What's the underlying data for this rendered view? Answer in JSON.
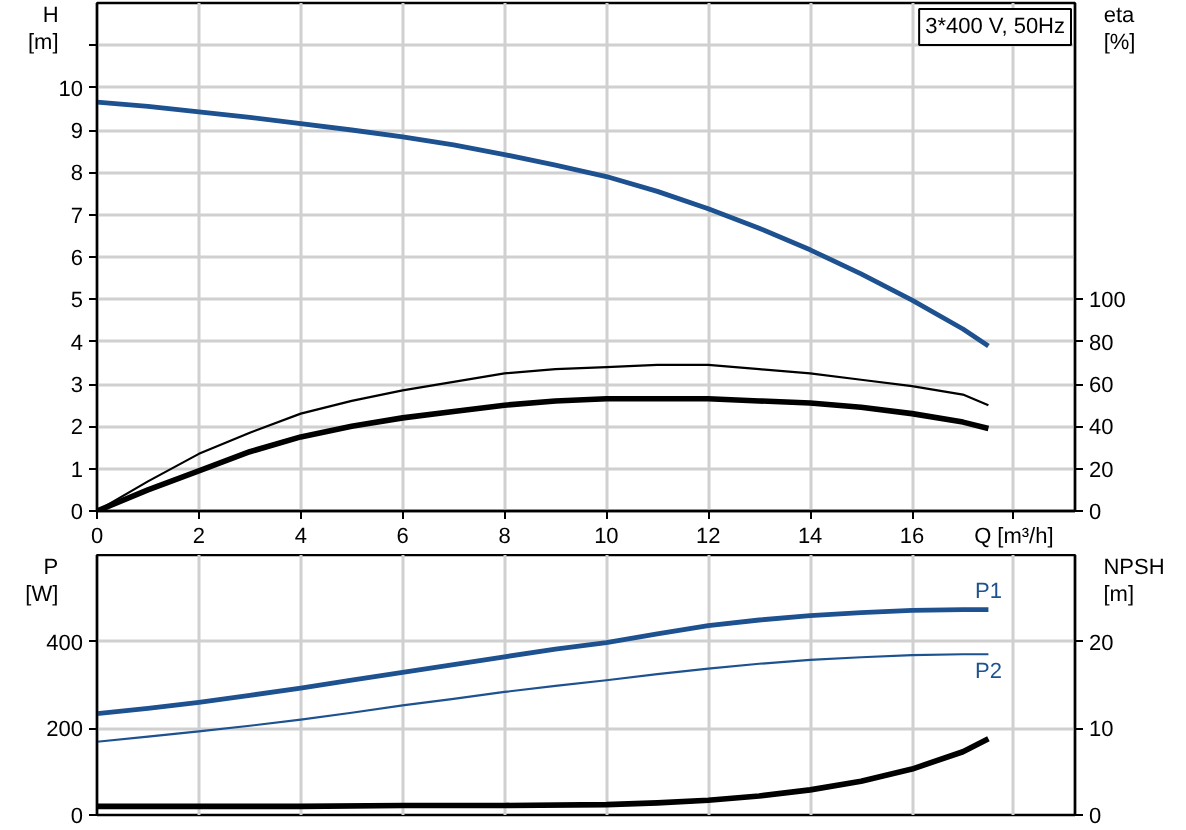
{
  "chart_data": [
    {
      "type": "line",
      "title": "3*400 V, 50Hz",
      "xlabel": "Q [m³/h]",
      "ylabel": "H [m]",
      "y2label": "eta [%]",
      "xlim": [
        0,
        19.2
      ],
      "xticks": [
        0,
        2,
        4,
        6,
        8,
        10,
        12,
        14,
        16,
        {
          "value": 18,
          "label": null
        }
      ],
      "ylim": [
        0,
        12
      ],
      "yticks": [
        0,
        1,
        2,
        3,
        4,
        5,
        6,
        7,
        8,
        9,
        10,
        {
          "value": 11,
          "label": null
        }
      ],
      "y2lim": [
        0,
        240
      ],
      "y2ticks": [
        0,
        20,
        40,
        60,
        80,
        100
      ],
      "grid": true,
      "series": [
        {
          "color": "#1d5190",
          "x": [
            0,
            1,
            2,
            3,
            4,
            5,
            6,
            7,
            8,
            9,
            10,
            11,
            12,
            13,
            14,
            15,
            16,
            17,
            17.5
          ],
          "values": [
            9.66,
            9.56,
            9.43,
            9.3,
            9.15,
            9.0,
            8.84,
            8.65,
            8.42,
            8.17,
            7.9,
            7.55,
            7.14,
            6.68,
            6.17,
            5.6,
            4.98,
            4.3,
            3.9
          ]
        },
        {
          "color": "#000000",
          "axis": "y2",
          "x": [
            0,
            1,
            2,
            3,
            4,
            5,
            6,
            7,
            8,
            9,
            10,
            11,
            12,
            13,
            14,
            15,
            16,
            17,
            17.5
          ],
          "values": [
            0,
            14,
            27,
            37,
            46,
            52,
            57,
            61,
            65,
            67,
            68,
            69,
            69,
            67,
            65,
            62,
            59,
            55,
            50
          ]
        },
        {
          "color": "#000000",
          "axis": "y2",
          "x": [
            0,
            1,
            2,
            3,
            4,
            5,
            6,
            7,
            8,
            9,
            10,
            11,
            12,
            13,
            14,
            15,
            16,
            17,
            17.5
          ],
          "values": [
            0,
            10,
            19,
            28,
            35,
            40,
            44,
            47,
            50,
            52,
            53,
            53,
            53,
            52,
            51,
            49,
            46,
            42,
            39
          ]
        }
      ]
    },
    {
      "type": "line",
      "ylabel": "P [W]",
      "y2label": "NPSH [m]",
      "tick_labels": "y",
      "xlim": [
        0,
        19.2
      ],
      "xticks": [
        0,
        2,
        4,
        6,
        8,
        10,
        12,
        14,
        16,
        18
      ],
      "ylim": [
        0,
        600
      ],
      "yticks": [
        0,
        200,
        400
      ],
      "y2lim": [
        0,
        30
      ],
      "y2ticks": [
        0,
        10,
        20
      ],
      "grid": true,
      "series": [
        {
          "name": "P1",
          "color": "#1d5190",
          "x": [
            0,
            1,
            2,
            3,
            4,
            5,
            6,
            7,
            8,
            9,
            10,
            11,
            12,
            13,
            14,
            15,
            16,
            17,
            17.5
          ],
          "values": [
            234,
            246,
            260,
            276,
            293,
            311,
            329,
            347,
            365,
            383,
            398,
            418,
            437,
            450,
            460,
            467,
            472,
            474,
            474
          ]
        },
        {
          "name": "P2",
          "color": "#1d5190",
          "x": [
            0,
            1,
            2,
            3,
            4,
            5,
            6,
            7,
            8,
            9,
            10,
            11,
            12,
            13,
            14,
            15,
            16,
            17,
            17.5
          ],
          "values": [
            169,
            181,
            193,
            206,
            220,
            236,
            253,
            268,
            284,
            298,
            311,
            325,
            338,
            349,
            358,
            364,
            369,
            371,
            371
          ]
        },
        {
          "color": "#000000",
          "axis": "y2",
          "x": [
            0,
            2,
            4,
            6,
            8,
            10,
            11,
            12,
            13,
            14,
            15,
            16,
            17,
            17.5
          ],
          "values": [
            1.0,
            1.0,
            1.0,
            1.1,
            1.1,
            1.2,
            1.4,
            1.7,
            2.2,
            2.9,
            3.9,
            5.3,
            7.3,
            8.8
          ]
        }
      ]
    }
  ]
}
